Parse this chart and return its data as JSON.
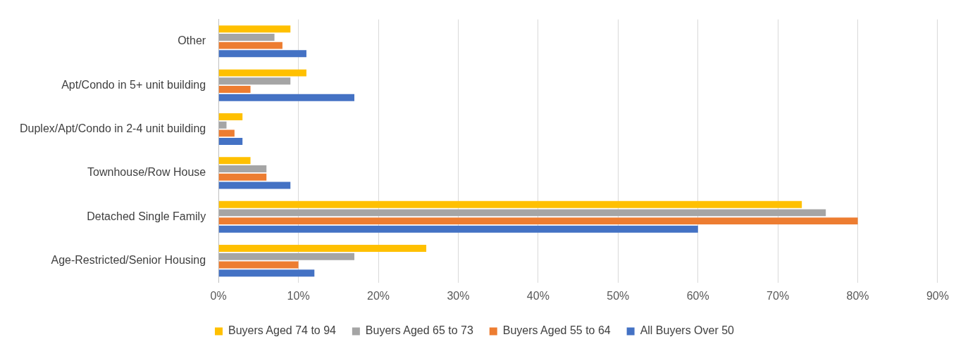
{
  "chart_data": {
    "type": "bar",
    "orientation": "horizontal",
    "categories": [
      "Other",
      "Apt/Condo in 5+ unit building",
      "Duplex/Apt/Condo in 2-4 unit building",
      "Townhouse/Row House",
      "Detached Single Family",
      "Age-Restricted/Senior Housing"
    ],
    "series": [
      {
        "name": "Buyers Aged 74 to 94",
        "color": "#ffc000",
        "values": [
          9,
          11,
          3,
          4,
          73,
          26
        ]
      },
      {
        "name": "Buyers Aged 65 to 73",
        "color": "#a5a5a5",
        "values": [
          7,
          9,
          1,
          6,
          76,
          17
        ]
      },
      {
        "name": "Buyers Aged 55 to 64",
        "color": "#ed7d31",
        "values": [
          8,
          4,
          2,
          6,
          80,
          10
        ]
      },
      {
        "name": "All Buyers Over 50",
        "color": "#4472c4",
        "values": [
          11,
          17,
          3,
          9,
          60,
          12
        ]
      }
    ],
    "xlim": [
      0,
      90
    ],
    "xticks": [
      {
        "value": 0,
        "label": "0%"
      },
      {
        "value": 10,
        "label": "10%"
      },
      {
        "value": 20,
        "label": "20%"
      },
      {
        "value": 30,
        "label": "30%"
      },
      {
        "value": 40,
        "label": "40%"
      },
      {
        "value": 50,
        "label": "50%"
      },
      {
        "value": 60,
        "label": "60%"
      },
      {
        "value": 70,
        "label": "70%"
      },
      {
        "value": 80,
        "label": "80%"
      },
      {
        "value": 90,
        "label": "90%"
      }
    ],
    "grid": "x",
    "legend": "bottom"
  }
}
